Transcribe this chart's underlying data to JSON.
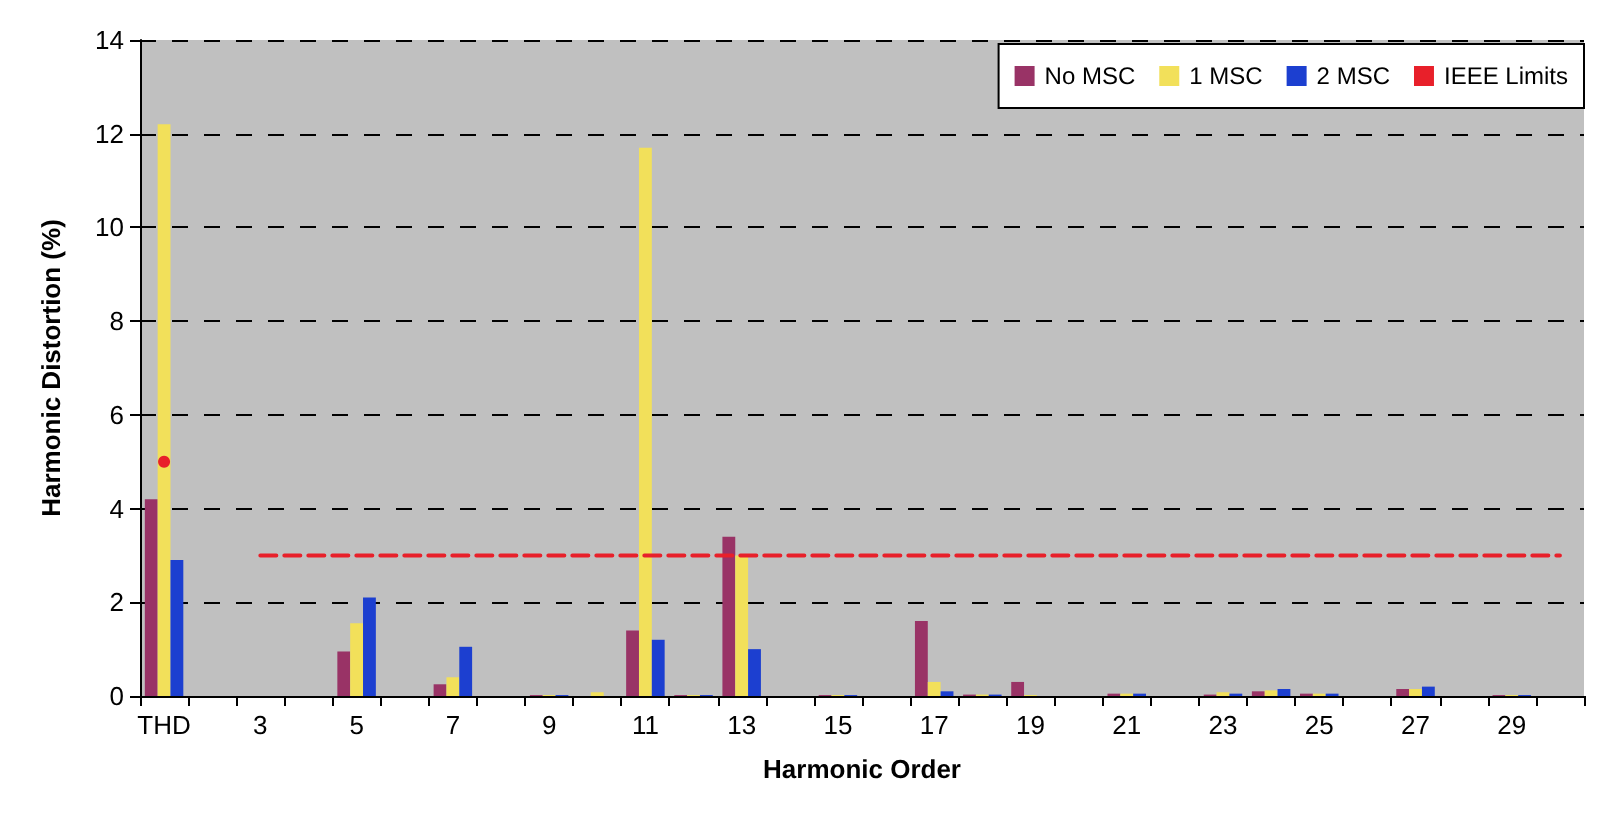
{
  "chart_data": {
    "type": "bar",
    "xlabel": "Harmonic Order",
    "ylabel": "Harmonic Distortion (%)",
    "categories": [
      "THD",
      null,
      "3",
      null,
      "5",
      null,
      "7",
      null,
      "9",
      null,
      "11",
      null,
      "13",
      null,
      "15",
      null,
      "17",
      null,
      "19",
      null,
      "21",
      null,
      "23",
      null,
      "25",
      null,
      "27",
      null,
      "29",
      null
    ],
    "series": [
      {
        "name": "No MSC",
        "color": "#993366",
        "values": [
          4.2,
          0,
          0,
          0,
          0.95,
          0,
          0.25,
          0,
          0.02,
          0,
          1.4,
          0.02,
          3.4,
          0,
          0.02,
          0,
          1.6,
          0.03,
          0.3,
          0,
          0.05,
          0,
          0.03,
          0.1,
          0.05,
          0,
          0.15,
          0,
          0.02,
          0
        ]
      },
      {
        "name": "1 MSC",
        "color": "#f2e05a",
        "values": [
          12.2,
          0,
          0,
          0,
          1.55,
          0,
          0.4,
          0,
          0.02,
          0.08,
          11.7,
          0.02,
          3.0,
          0,
          0.02,
          0,
          0.3,
          0.03,
          0.02,
          0,
          0.05,
          0,
          0.08,
          0.12,
          0.05,
          0,
          0.15,
          0,
          0.02,
          0
        ]
      },
      {
        "name": "2 MSC",
        "color": "#1c3fd0",
        "values": [
          2.9,
          0,
          0,
          0,
          2.1,
          0,
          1.05,
          0,
          0.02,
          0,
          1.2,
          0.02,
          1.0,
          0,
          0.02,
          0,
          0.1,
          0.03,
          0,
          0,
          0.05,
          0,
          0.05,
          0.15,
          0.05,
          0,
          0.2,
          0,
          0.02,
          0
        ]
      },
      {
        "name": "IEEE Limits",
        "type": "line",
        "color": "#e8202a",
        "line_style": "dashed",
        "values": [
          5,
          null,
          3,
          3,
          3,
          3,
          3,
          3,
          3,
          3,
          3,
          3,
          3,
          3,
          3,
          3,
          3,
          3,
          3,
          3,
          3,
          3,
          3,
          3,
          3,
          3,
          3,
          3,
          3,
          3
        ]
      }
    ],
    "ylim": [
      0,
      14
    ],
    "yticks": [
      0,
      2,
      4,
      6,
      8,
      10,
      12,
      14
    ],
    "grid": "y",
    "legend": "top right"
  }
}
